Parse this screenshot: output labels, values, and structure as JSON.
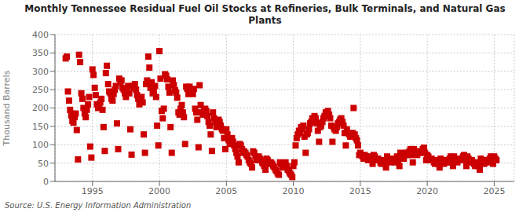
{
  "chart_data": {
    "type": "scatter",
    "title": "Monthly Tennessee Residual Fuel Oil Stocks at Refineries, Bulk Terminals, and Natural Gas\nPlants",
    "ylabel": "Thousand Barrels",
    "annotations": [
      "Source: U.S. Energy Information Administration"
    ],
    "color": "#CC0000",
    "marker": "square",
    "grid": true,
    "xlim": [
      1992.2,
      2026.5
    ],
    "ylim": [
      0,
      400
    ],
    "xticks": [
      1995,
      2000,
      2005,
      2010,
      2015,
      2020,
      2025
    ],
    "yticks": [
      0,
      50,
      100,
      150,
      200,
      250,
      300,
      350,
      400
    ],
    "x": [
      1993.0,
      1993.08,
      1993.17,
      1993.25,
      1993.33,
      1993.42,
      1993.5,
      1993.58,
      1993.67,
      1993.75,
      1993.83,
      1993.92,
      1994.0,
      1994.08,
      1994.17,
      1994.25,
      1994.33,
      1994.42,
      1994.5,
      1994.58,
      1994.67,
      1994.75,
      1994.83,
      1994.92,
      1995.0,
      1995.08,
      1995.17,
      1995.25,
      1995.33,
      1995.42,
      1995.5,
      1995.58,
      1995.67,
      1995.75,
      1995.83,
      1995.92,
      1996.0,
      1996.08,
      1996.17,
      1996.25,
      1996.33,
      1996.42,
      1996.5,
      1996.58,
      1996.67,
      1996.75,
      1996.83,
      1996.92,
      1997.0,
      1997.08,
      1997.17,
      1997.25,
      1997.33,
      1997.42,
      1997.5,
      1997.58,
      1997.67,
      1997.75,
      1997.83,
      1997.92,
      1998.0,
      1998.08,
      1998.17,
      1998.25,
      1998.33,
      1998.42,
      1998.5,
      1998.58,
      1998.67,
      1998.75,
      1998.83,
      1998.92,
      1999.0,
      1999.08,
      1999.17,
      1999.25,
      1999.33,
      1999.42,
      1999.5,
      1999.58,
      1999.67,
      1999.75,
      1999.83,
      1999.92,
      2000.0,
      2000.08,
      2000.17,
      2000.25,
      2000.33,
      2000.42,
      2000.5,
      2000.58,
      2000.67,
      2000.75,
      2000.83,
      2000.92,
      2001.0,
      2001.08,
      2001.17,
      2001.25,
      2001.33,
      2001.42,
      2001.5,
      2001.58,
      2001.67,
      2001.75,
      2001.83,
      2001.92,
      2002.0,
      2002.08,
      2002.17,
      2002.25,
      2002.33,
      2002.42,
      2002.5,
      2002.58,
      2002.67,
      2002.75,
      2002.83,
      2002.92,
      2003.0,
      2003.08,
      2003.17,
      2003.25,
      2003.33,
      2003.42,
      2003.5,
      2003.58,
      2003.67,
      2003.75,
      2003.83,
      2003.92,
      2004.0,
      2004.08,
      2004.17,
      2004.25,
      2004.33,
      2004.42,
      2004.5,
      2004.58,
      2004.67,
      2004.75,
      2004.83,
      2004.92,
      2005.0,
      2005.08,
      2005.17,
      2005.25,
      2005.33,
      2005.42,
      2005.5,
      2005.58,
      2005.67,
      2005.75,
      2005.83,
      2005.92,
      2006.0,
      2006.08,
      2006.17,
      2006.25,
      2006.33,
      2006.42,
      2006.5,
      2006.58,
      2006.67,
      2006.75,
      2006.83,
      2006.92,
      2007.0,
      2007.08,
      2007.17,
      2007.25,
      2007.33,
      2007.42,
      2007.5,
      2007.58,
      2007.67,
      2007.75,
      2007.83,
      2007.92,
      2008.0,
      2008.08,
      2008.17,
      2008.25,
      2008.33,
      2008.42,
      2008.5,
      2008.58,
      2008.67,
      2008.75,
      2008.83,
      2008.92,
      2009.0,
      2009.08,
      2009.17,
      2009.25,
      2009.33,
      2009.42,
      2009.5,
      2009.58,
      2009.67,
      2009.75,
      2009.83,
      2009.92,
      2010.0,
      2010.08,
      2010.17,
      2010.25,
      2010.33,
      2010.42,
      2010.5,
      2010.58,
      2010.67,
      2010.75,
      2010.83,
      2010.92,
      2011.0,
      2011.08,
      2011.17,
      2011.25,
      2011.33,
      2011.42,
      2011.5,
      2011.58,
      2011.67,
      2011.75,
      2011.83,
      2011.92,
      2012.0,
      2012.08,
      2012.17,
      2012.25,
      2012.33,
      2012.42,
      2012.5,
      2012.58,
      2012.67,
      2012.75,
      2012.83,
      2012.92,
      2013.0,
      2013.08,
      2013.17,
      2013.25,
      2013.33,
      2013.42,
      2013.5,
      2013.58,
      2013.67,
      2013.75,
      2013.83,
      2013.92,
      2014.0,
      2014.08,
      2014.17,
      2014.25,
      2014.33,
      2014.42,
      2014.5,
      2014.58,
      2014.67,
      2014.75,
      2014.83,
      2014.92,
      2015.0,
      2015.08,
      2015.17,
      2015.25,
      2015.33,
      2015.42,
      2015.5,
      2015.58,
      2015.67,
      2015.75,
      2015.83,
      2015.92,
      2016.0,
      2016.08,
      2016.17,
      2016.25,
      2016.33,
      2016.42,
      2016.5,
      2016.58,
      2016.67,
      2016.75,
      2016.83,
      2016.92,
      2017.0,
      2017.08,
      2017.17,
      2017.25,
      2017.33,
      2017.42,
      2017.5,
      2017.58,
      2017.67,
      2017.75,
      2017.83,
      2017.92,
      2018.0,
      2018.08,
      2018.17,
      2018.25,
      2018.33,
      2018.42,
      2018.5,
      2018.58,
      2018.67,
      2018.75,
      2018.83,
      2018.92,
      2019.0,
      2019.08,
      2019.17,
      2019.25,
      2019.33,
      2019.42,
      2019.5,
      2019.58,
      2019.67,
      2019.75,
      2019.83,
      2019.92,
      2020.0,
      2020.08,
      2020.17,
      2020.25,
      2020.33,
      2020.42,
      2020.5,
      2020.58,
      2020.67,
      2020.75,
      2020.83,
      2020.92,
      2021.0,
      2021.08,
      2021.17,
      2021.25,
      2021.33,
      2021.42,
      2021.5,
      2021.58,
      2021.67,
      2021.75,
      2021.83,
      2021.92,
      2022.0,
      2022.08,
      2022.17,
      2022.25,
      2022.33,
      2022.42,
      2022.5,
      2022.58,
      2022.67,
      2022.75,
      2022.83,
      2022.92,
      2023.0,
      2023.08,
      2023.17,
      2023.25,
      2023.33,
      2023.42,
      2023.5,
      2023.58,
      2023.67,
      2023.75,
      2023.83,
      2023.92,
      2024.0,
      2024.08,
      2024.17,
      2024.25,
      2024.33,
      2024.42,
      2024.5,
      2024.58,
      2024.67,
      2024.75,
      2024.83,
      2024.92,
      2025.0,
      2025.08,
      2025.17
    ],
    "values": [
      335,
      340,
      245,
      220,
      195,
      180,
      165,
      160,
      175,
      185,
      140,
      60,
      345,
      325,
      240,
      225,
      200,
      185,
      175,
      195,
      210,
      230,
      95,
      65,
      305,
      290,
      255,
      235,
      210,
      200,
      205,
      215,
      225,
      195,
      148,
      83,
      295,
      315,
      265,
      245,
      240,
      225,
      220,
      238,
      250,
      260,
      158,
      88,
      280,
      270,
      275,
      255,
      250,
      240,
      230,
      245,
      260,
      240,
      142,
      73,
      260,
      255,
      265,
      250,
      235,
      225,
      210,
      220,
      230,
      215,
      128,
      78,
      265,
      275,
      340,
      310,
      255,
      270,
      240,
      245,
      260,
      230,
      152,
      98,
      355,
      280,
      192,
      172,
      198,
      292,
      288,
      278,
      258,
      242,
      148,
      78,
      275,
      262,
      248,
      242,
      228,
      188,
      182,
      198,
      208,
      188,
      175,
      102,
      258,
      252,
      238,
      258,
      248,
      242,
      238,
      252,
      198,
      188,
      168,
      93,
      262,
      208,
      188,
      182,
      192,
      198,
      192,
      178,
      162,
      152,
      128,
      83,
      188,
      172,
      162,
      148,
      158,
      168,
      162,
      152,
      142,
      138,
      118,
      88,
      142,
      128,
      112,
      102,
      112,
      118,
      108,
      98,
      88,
      78,
      68,
      52,
      102,
      98,
      88,
      78,
      82,
      78,
      72,
      68,
      58,
      52,
      48,
      38,
      82,
      78,
      68,
      58,
      62,
      68,
      62,
      58,
      52,
      48,
      42,
      32,
      62,
      58,
      52,
      48,
      52,
      48,
      42,
      38,
      32,
      28,
      22,
      18,
      52,
      48,
      42,
      38,
      48,
      52,
      42,
      32,
      28,
      22,
      18,
      12,
      42,
      52,
      98,
      118,
      128,
      138,
      132,
      148,
      142,
      152,
      122,
      78,
      128,
      132,
      142,
      158,
      162,
      172,
      168,
      178,
      172,
      158,
      138,
      108,
      148,
      152,
      162,
      172,
      178,
      188,
      182,
      192,
      182,
      172,
      152,
      108,
      148,
      142,
      138,
      148,
      158,
      162,
      168,
      172,
      162,
      152,
      132,
      98,
      142,
      132,
      128,
      122,
      128,
      132,
      200,
      128,
      118,
      112,
      98,
      72,
      78,
      72,
      68,
      62,
      72,
      68,
      62,
      58,
      62,
      68,
      58,
      48,
      72,
      68,
      62,
      58,
      62,
      58,
      52,
      48,
      52,
      58,
      48,
      38,
      68,
      62,
      58,
      52,
      58,
      62,
      58,
      52,
      62,
      68,
      52,
      42,
      78,
      72,
      68,
      62,
      72,
      78,
      72,
      78,
      82,
      88,
      72,
      52,
      88,
      82,
      78,
      72,
      78,
      82,
      78,
      82,
      88,
      92,
      78,
      58,
      72,
      68,
      62,
      58,
      62,
      58,
      52,
      48,
      52,
      58,
      48,
      38,
      62,
      58,
      52,
      48,
      52,
      58,
      52,
      58,
      62,
      68,
      52,
      42,
      68,
      62,
      58,
      52,
      58,
      62,
      58,
      62,
      68,
      72,
      58,
      42,
      68,
      62,
      58,
      52,
      58,
      52,
      48,
      42,
      48,
      52,
      42,
      32,
      62,
      58,
      52,
      48,
      52,
      58,
      52,
      58,
      62,
      68,
      58,
      48,
      68,
      62,
      58
    ]
  }
}
